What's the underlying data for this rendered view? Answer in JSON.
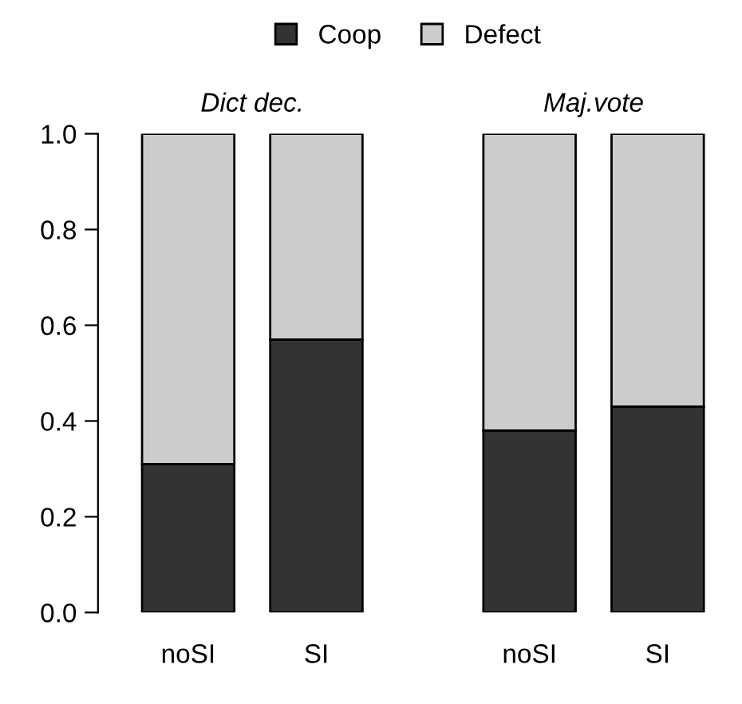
{
  "chart_data": [
    {
      "type": "bar",
      "title": "Dict dec.",
      "categories": [
        "noSI",
        "SI"
      ],
      "stacked": true,
      "legend": "top",
      "ylim": [
        0,
        1
      ],
      "yticks": [
        {
          "value": 0,
          "label": "0.0"
        },
        0.2,
        0.4,
        0.6,
        0.8,
        {
          "value": 1,
          "label": "1.0"
        }
      ],
      "grid": false,
      "series": [
        {
          "name": "Coop",
          "color": "#333333",
          "values": [
            0.31,
            0.57
          ]
        },
        {
          "name": "Defect",
          "color": "#cccccc",
          "values": [
            0.69,
            0.43
          ]
        }
      ]
    },
    {
      "type": "bar",
      "title": "Maj.vote",
      "categories": [
        "noSI",
        "SI"
      ],
      "stacked": true,
      "ylim": [
        0,
        1
      ],
      "tick_labels": "x",
      "grid": false,
      "series": [
        {
          "color": "#333333",
          "values": [
            0.38,
            0.43
          ]
        },
        {
          "color": "#cccccc",
          "values": [
            0.62,
            0.57
          ]
        }
      ]
    }
  ]
}
